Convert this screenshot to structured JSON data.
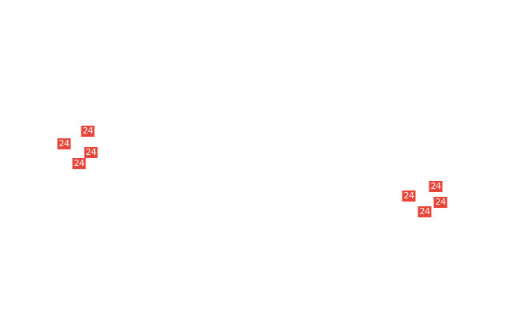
{
  "badge_color": "#e8463a",
  "clusters": [
    {
      "badges": [
        "24",
        "24",
        "24",
        "24"
      ]
    },
    {
      "badges": [
        "24",
        "24",
        "24",
        "24"
      ]
    }
  ]
}
